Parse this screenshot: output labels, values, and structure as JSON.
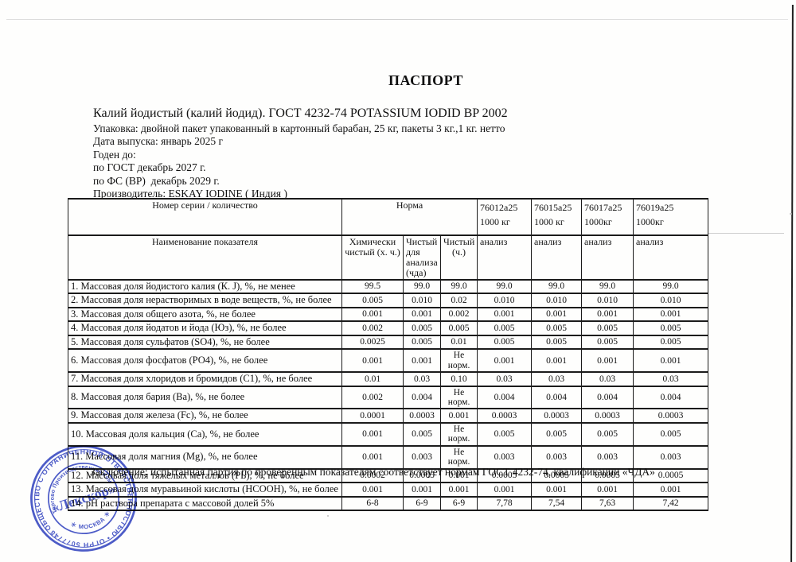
{
  "page": {
    "title": "ПАСПОРТ"
  },
  "header": {
    "product_line": "Калий йодистый (калий йодид). ГОСТ 4232-74 POTASSIUM IODID BP 2002",
    "packaging": "Упаковка: двойной пакет упакованный в картонный барабан, 25 кг, пакеты 3 кг.,1 кг. нетто",
    "release_date": "Дата выпуска: январь 2025 г",
    "valid_until_label": "Годен до:",
    "gost_expiry": "по ГОСТ декабрь 2027 г.",
    "fs_expiry": "по ФС (ВР)  декабрь 2029 г.",
    "manufacturer": "Производитель: ESKAY IODINE ( Индия )"
  },
  "table": {
    "series_label": "Номер серии / количество",
    "norm_label": "Норма",
    "indicator_label": "Наименование показателя",
    "analysis_label": "анализ",
    "grade_columns": [
      "Химически чистый (х. ч.)",
      "Чистый для анализа (чда)",
      "Чистый (ч.)"
    ],
    "batches": [
      {
        "id": "76012a25",
        "qty": "1000 кг"
      },
      {
        "id": "76015a25",
        "qty": "1000 кг"
      },
      {
        "id": "76017a25",
        "qty": "1000кг"
      },
      {
        "id": "76019a25",
        "qty": "1000кг"
      }
    ],
    "rows": [
      {
        "label": "1. Массовая доля йодистого калия (К. J), %, не менее",
        "values": [
          "99.5",
          "99.0",
          "99.0",
          "99.0",
          "99.0",
          "99.0",
          "99.0"
        ]
      },
      {
        "label": "2. Массовая доля нерастворимых в воде веществ, %, не более",
        "values": [
          "0.005",
          "0.010",
          "0.02",
          "0.010",
          "0.010",
          "0.010",
          "0.010"
        ]
      },
      {
        "label": "3. Массовая доля общего азота, %, не более",
        "values": [
          "0.001",
          "0.001",
          "0.002",
          "0.001",
          "0.001",
          "0.001",
          "0.001"
        ]
      },
      {
        "label": "4. Массовая доля йодатов и йода (Юз), %, не более",
        "values": [
          "0.002",
          "0.005",
          "0.005",
          "0.005",
          "0.005",
          "0.005",
          "0.005"
        ]
      },
      {
        "label": "5. Массовая доля сульфатов (SO4), %, не более",
        "values": [
          "0.0025",
          "0.005",
          "0.01",
          "0.005",
          "0.005",
          "0.005",
          "0.005"
        ]
      },
      {
        "label": "6. Массовая доля фосфатов (РО4), %, не более",
        "values": [
          "0.001",
          "0.001",
          "Не норм.",
          "0.001",
          "0.001",
          "0.001",
          "0.001"
        ]
      },
      {
        "label": "7. Массовая доля хлоридов и бромидов (С1), %, не более",
        "values": [
          "0.01",
          "0.03",
          "0.10",
          "0.03",
          "0.03",
          "0.03",
          "0.03"
        ]
      },
      {
        "label": "8. Массовая доля бария (Ва), %, не более",
        "values": [
          "0.002",
          "0.004",
          "Не норм.",
          "0.004",
          "0.004",
          "0.004",
          "0.004"
        ]
      },
      {
        "label": "9. Массовая доля железа (Fc), %, не более",
        "values": [
          "0.0001",
          "0.0003",
          "0.001",
          "0.0003",
          "0.0003",
          "0.0003",
          "0.0003"
        ]
      },
      {
        "label": "10. Массовая доля кальция (Са), %, не более",
        "values": [
          "0.001",
          "0.005",
          "Не норм.",
          "0.005",
          "0.005",
          "0.005",
          "0.005"
        ]
      },
      {
        "label": "11. Массовая доля магния (Mg), %, не более",
        "values": [
          "0.001",
          "0.003",
          "Не норм.",
          "0.003",
          "0.003",
          "0.003",
          "0.003"
        ]
      },
      {
        "label": "12. Массовая доля тяжелых металлов (РЬ), %, не более",
        "values": [
          "0.0002",
          "0.0005",
          "0.001",
          "0.0005",
          "0.0005",
          "0.0005",
          "0.0005"
        ]
      },
      {
        "label": "13. Массовая доля муравьиной кислоты (НСООН), %, не более",
        "values": [
          "0.001",
          "0.001",
          "0.001",
          "0.001",
          "0.001",
          "0.001",
          "0.001"
        ]
      },
      {
        "label": "14. рН раствора препарата с массовой долей 5%",
        "values": [
          "6-8",
          "6-9",
          "6-9",
          "7,78",
          "7,54",
          "7,63",
          "7,42"
        ]
      }
    ]
  },
  "conclusion": "Заключение: испытанная партия по проверенным показателям соответствует нормам ГОСТ 4232-74, квалификации «ЧДА»",
  "stamp": {
    "outer_text": "ОБЩЕСТВО С ОГРАНИЧЕННОЙ ОТВЕТСТВЕННОСТЬЮ  •  ОГРН 5077748317582",
    "inner_top_text": "Торгово Производственная Компания",
    "inner_bottom_text": "＊  МОСКВА  ＊",
    "center_text": "«Лекскор»",
    "ink_color": "#2e3fc0"
  }
}
